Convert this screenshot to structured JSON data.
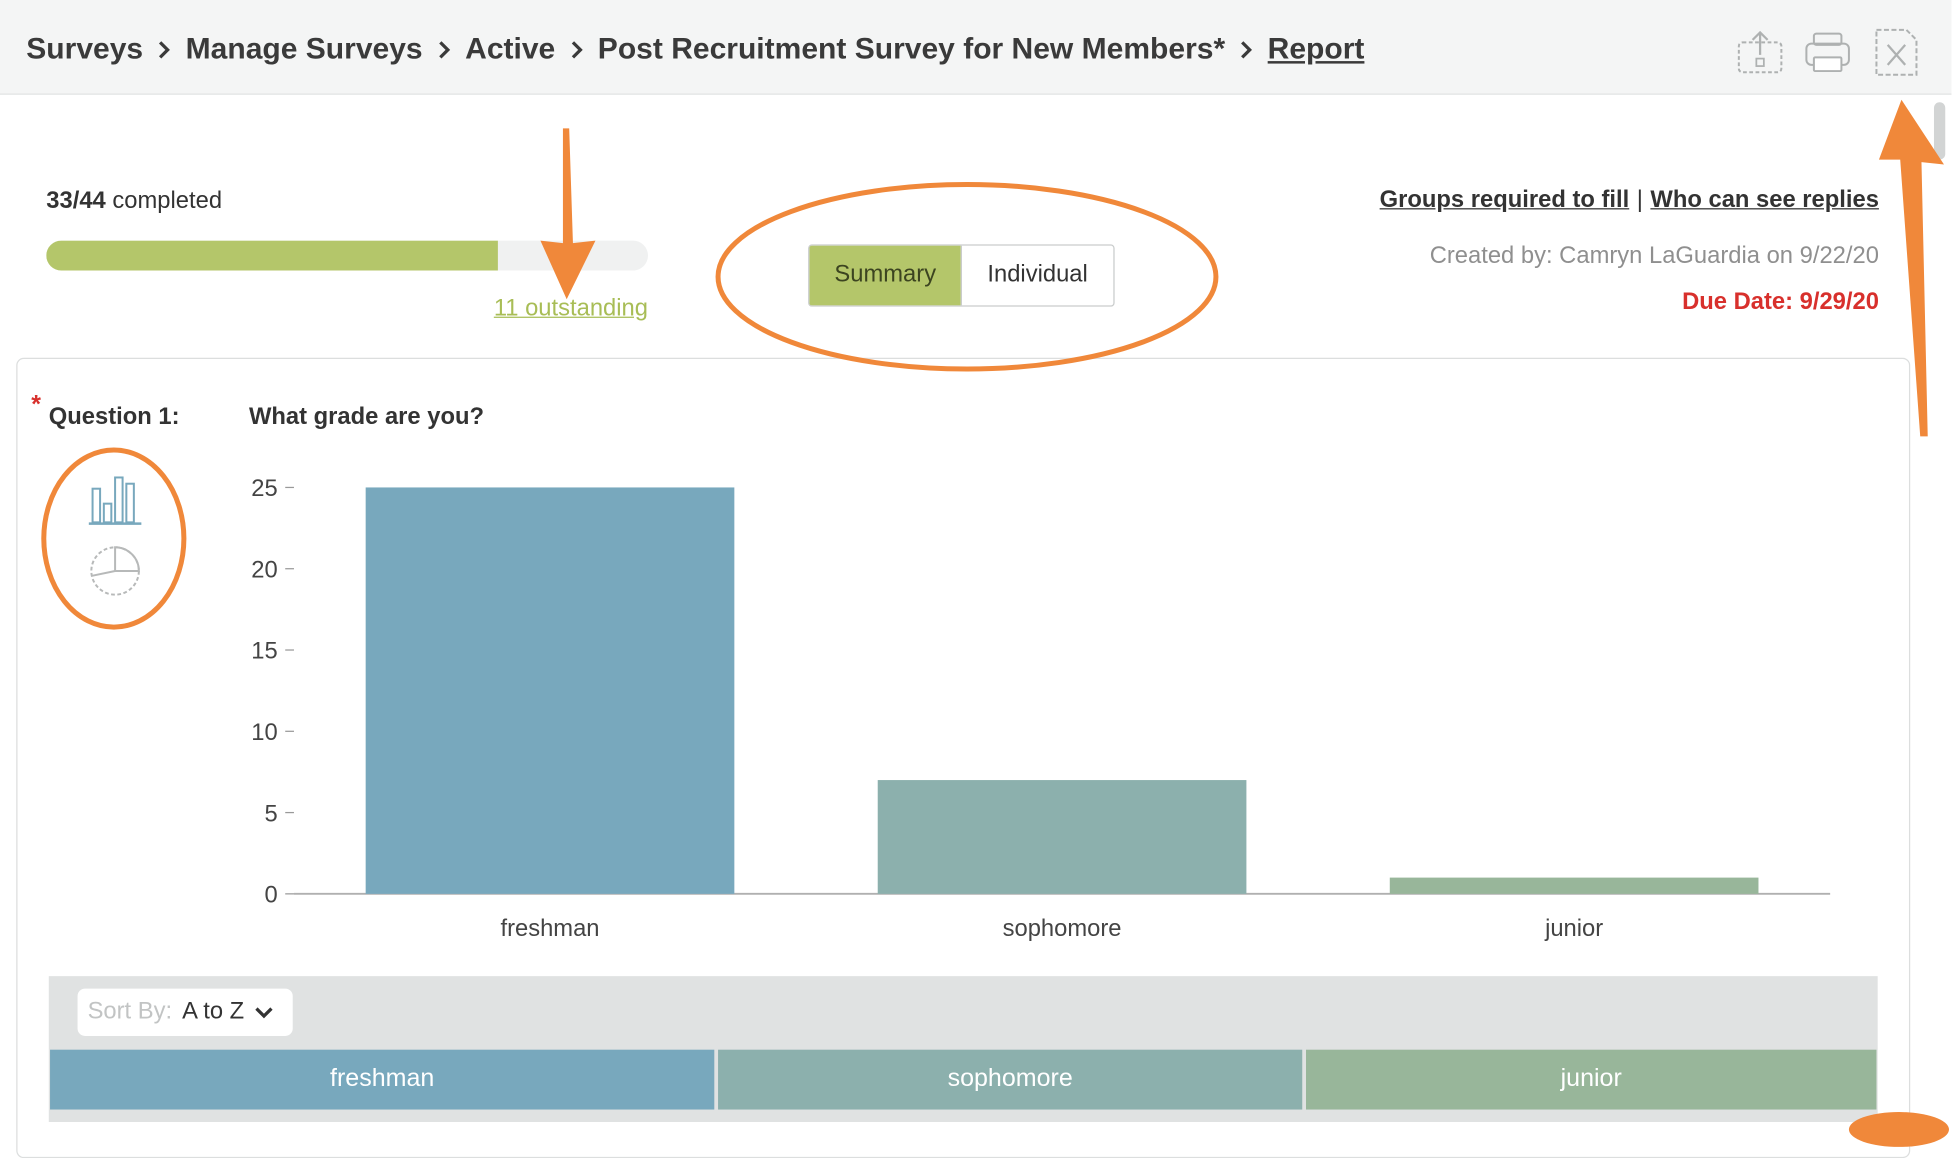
{
  "breadcrumb": {
    "items": [
      "Surveys",
      "Manage Surveys",
      "Active",
      "Post Recruitment Survey for New Members*"
    ],
    "current": "Report"
  },
  "header_icons": [
    "upload-icon",
    "print-icon",
    "excel-export-icon"
  ],
  "progress": {
    "completed": "33/44",
    "completed_suffix": "completed",
    "fraction": 0.75,
    "outstanding_link": "11 outstanding"
  },
  "view_toggle": {
    "options": [
      "Summary",
      "Individual"
    ],
    "selected": "Summary"
  },
  "meta": {
    "groups_link": "Groups required to fill",
    "separator": "|",
    "who_link": "Who can see replies",
    "created_by": "Created by: Camryn LaGuardia on 9/22/20",
    "due_date": "Due Date: 9/29/20"
  },
  "question": {
    "required_marker": "*",
    "label": "Question 1:",
    "text": "What grade are you?",
    "chart_type_icons": [
      "bar-chart-icon",
      "pie-chart-icon"
    ],
    "selected_chart_type": "bar-chart-icon"
  },
  "chart_data": {
    "type": "bar",
    "categories": [
      "freshman",
      "sophomore",
      "junior"
    ],
    "values": [
      25,
      7,
      1
    ],
    "colors": [
      "#78a8bd",
      "#8cb0ad",
      "#98b69a"
    ],
    "ylim": [
      0,
      25
    ],
    "yticks": [
      0,
      5,
      10,
      15,
      20,
      25
    ],
    "grid": false,
    "title": "",
    "xlabel": "",
    "ylabel": ""
  },
  "table": {
    "sort_label": "Sort By:",
    "sort_value": "A to Z",
    "columns": [
      {
        "label": "freshman",
        "color": "#78a8bd"
      },
      {
        "label": "sophomore",
        "color": "#8cb0ad"
      },
      {
        "label": "junior",
        "color": "#98b69a"
      }
    ]
  },
  "colors": {
    "accent_green": "#b4c66a",
    "annotation_orange": "#f0883a",
    "due_red": "#d8302c"
  }
}
